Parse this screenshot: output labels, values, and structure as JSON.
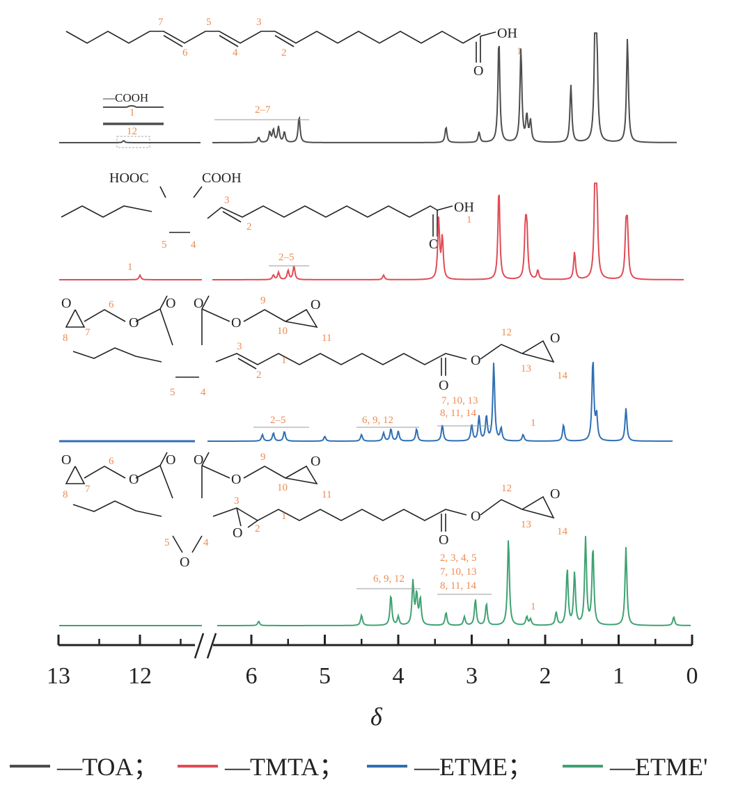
{
  "chart_data": {
    "type": "line",
    "xlabel": "δ",
    "x_reversed": true,
    "axis_break": true,
    "x_ticks": [
      "13",
      "12",
      "6",
      "5",
      "4",
      "3",
      "2",
      "1",
      "0"
    ],
    "series": [
      {
        "name": "TOA",
        "color": "#4d4d4d",
        "peaks": [
          [
            12.2,
            0.02
          ],
          [
            5.9,
            0.05
          ],
          [
            5.75,
            0.1
          ],
          [
            5.7,
            0.12
          ],
          [
            5.63,
            0.15
          ],
          [
            5.55,
            0.1
          ],
          [
            5.35,
            0.25
          ],
          [
            3.35,
            0.15
          ],
          [
            2.9,
            0.1
          ],
          [
            2.63,
            1.0
          ],
          [
            2.33,
            0.9
          ],
          [
            2.25,
            0.25
          ],
          [
            2.2,
            0.2
          ],
          [
            1.65,
            0.55
          ],
          [
            1.32,
            1.0
          ],
          [
            1.3,
            1.0
          ],
          [
            0.88,
            1.0
          ]
        ],
        "labels": [
          {
            "text": "1",
            "ppm": 2.33
          },
          {
            "text": "2–7",
            "ppm": 5.6
          },
          {
            "text": "12",
            "ppm": 12.0
          }
        ],
        "structure_numbers": [
          "7",
          "6",
          "5",
          "4",
          "3",
          "2"
        ],
        "structure_atoms": [
          "OH",
          "O"
        ],
        "inset_labels": [
          "—COOH",
          "1",
          "12"
        ]
      },
      {
        "name": "TMTA",
        "color": "#e04b55",
        "peaks": [
          [
            12.0,
            0.05
          ],
          [
            5.7,
            0.05
          ],
          [
            5.63,
            0.08
          ],
          [
            5.5,
            0.1
          ],
          [
            5.42,
            0.15
          ],
          [
            4.2,
            0.05
          ],
          [
            3.45,
            0.65
          ],
          [
            3.4,
            0.45
          ],
          [
            2.63,
            1.0
          ],
          [
            2.27,
            0.5
          ],
          [
            2.25,
            0.5
          ],
          [
            2.1,
            0.1
          ],
          [
            1.6,
            0.3
          ],
          [
            1.32,
            1.0
          ],
          [
            1.3,
            1.0
          ],
          [
            0.9,
            0.5
          ],
          [
            0.88,
            0.5
          ]
        ],
        "labels": [
          {
            "text": "1",
            "ppm": 12.0
          },
          {
            "text": "2–5",
            "ppm": 5.45
          },
          {
            "text": "1",
            "ppm": 3.45
          }
        ],
        "structure_numbers": [
          "3",
          "2",
          "5",
          "4"
        ],
        "structure_atoms": [
          "HOOC",
          "COOH",
          "OH",
          "O"
        ]
      },
      {
        "name": "ETME",
        "color": "#2f6fb3",
        "peaks": [
          [
            5.85,
            0.08
          ],
          [
            5.7,
            0.1
          ],
          [
            5.55,
            0.12
          ],
          [
            5.0,
            0.06
          ],
          [
            4.5,
            0.08
          ],
          [
            4.2,
            0.1
          ],
          [
            4.1,
            0.15
          ],
          [
            4.0,
            0.12
          ],
          [
            3.75,
            0.15
          ],
          [
            3.4,
            0.2
          ],
          [
            3.0,
            0.2
          ],
          [
            2.9,
            0.3
          ],
          [
            2.8,
            0.3
          ],
          [
            2.7,
            0.95
          ],
          [
            2.6,
            0.15
          ],
          [
            2.3,
            0.08
          ],
          [
            1.75,
            0.2
          ],
          [
            1.35,
            1.0
          ],
          [
            1.3,
            0.3
          ],
          [
            0.9,
            0.4
          ]
        ],
        "labels": [
          {
            "text": "2–5",
            "ppm": 5.6
          },
          {
            "text": "6, 9, 12",
            "ppm": 4.1
          },
          {
            "text": "7, 10, 13",
            "ppm": 3.0
          },
          {
            "text": "8, 11, 14",
            "ppm": 3.0
          },
          {
            "text": "1",
            "ppm": 2.1
          }
        ],
        "structure_numbers": [
          "6",
          "7",
          "8",
          "9",
          "10",
          "11",
          "12",
          "13",
          "14",
          "3",
          "2",
          "1",
          "5",
          "4"
        ],
        "structure_atoms": [
          "O",
          "O",
          "O",
          "O",
          "O",
          "O",
          "O",
          "O",
          "O"
        ]
      },
      {
        "name": "ETME'",
        "color": "#3fa273",
        "peaks": [
          [
            5.9,
            0.05
          ],
          [
            4.5,
            0.12
          ],
          [
            4.1,
            0.35
          ],
          [
            4.0,
            0.1
          ],
          [
            3.8,
            0.5
          ],
          [
            3.75,
            0.35
          ],
          [
            3.7,
            0.3
          ],
          [
            3.35,
            0.15
          ],
          [
            3.1,
            0.1
          ],
          [
            2.95,
            0.3
          ],
          [
            2.8,
            0.25
          ],
          [
            2.5,
            1.0
          ],
          [
            2.25,
            0.1
          ],
          [
            2.2,
            0.07
          ],
          [
            1.85,
            0.15
          ],
          [
            1.7,
            0.65
          ],
          [
            1.6,
            0.6
          ],
          [
            1.45,
            1.0
          ],
          [
            1.35,
            0.9
          ],
          [
            0.9,
            0.9
          ],
          [
            0.25,
            0.1
          ]
        ],
        "labels": [
          {
            "text": "6, 9, 12",
            "ppm": 3.9
          },
          {
            "text": "2, 3, 4, 5",
            "ppm": 3.0
          },
          {
            "text": "7, 10, 13",
            "ppm": 3.0
          },
          {
            "text": "8, 11, 14",
            "ppm": 3.0
          },
          {
            "text": "1",
            "ppm": 2.2
          }
        ],
        "structure_numbers": [
          "6",
          "7",
          "8",
          "9",
          "10",
          "11",
          "12",
          "13",
          "14",
          "3",
          "2",
          "1",
          "5",
          "4"
        ],
        "structure_atoms": [
          "O",
          "O",
          "O",
          "O",
          "O",
          "O",
          "O",
          "O",
          "O",
          "O",
          "O"
        ]
      }
    ]
  },
  "legend": [
    {
      "text": "—TOA；",
      "color": "#4d4d4d"
    },
    {
      "text": "—TMTA；",
      "color": "#e04b55"
    },
    {
      "text": "—ETME；",
      "color": "#2f6fb3"
    },
    {
      "text": "—ETME'",
      "color": "#3fa273"
    }
  ]
}
